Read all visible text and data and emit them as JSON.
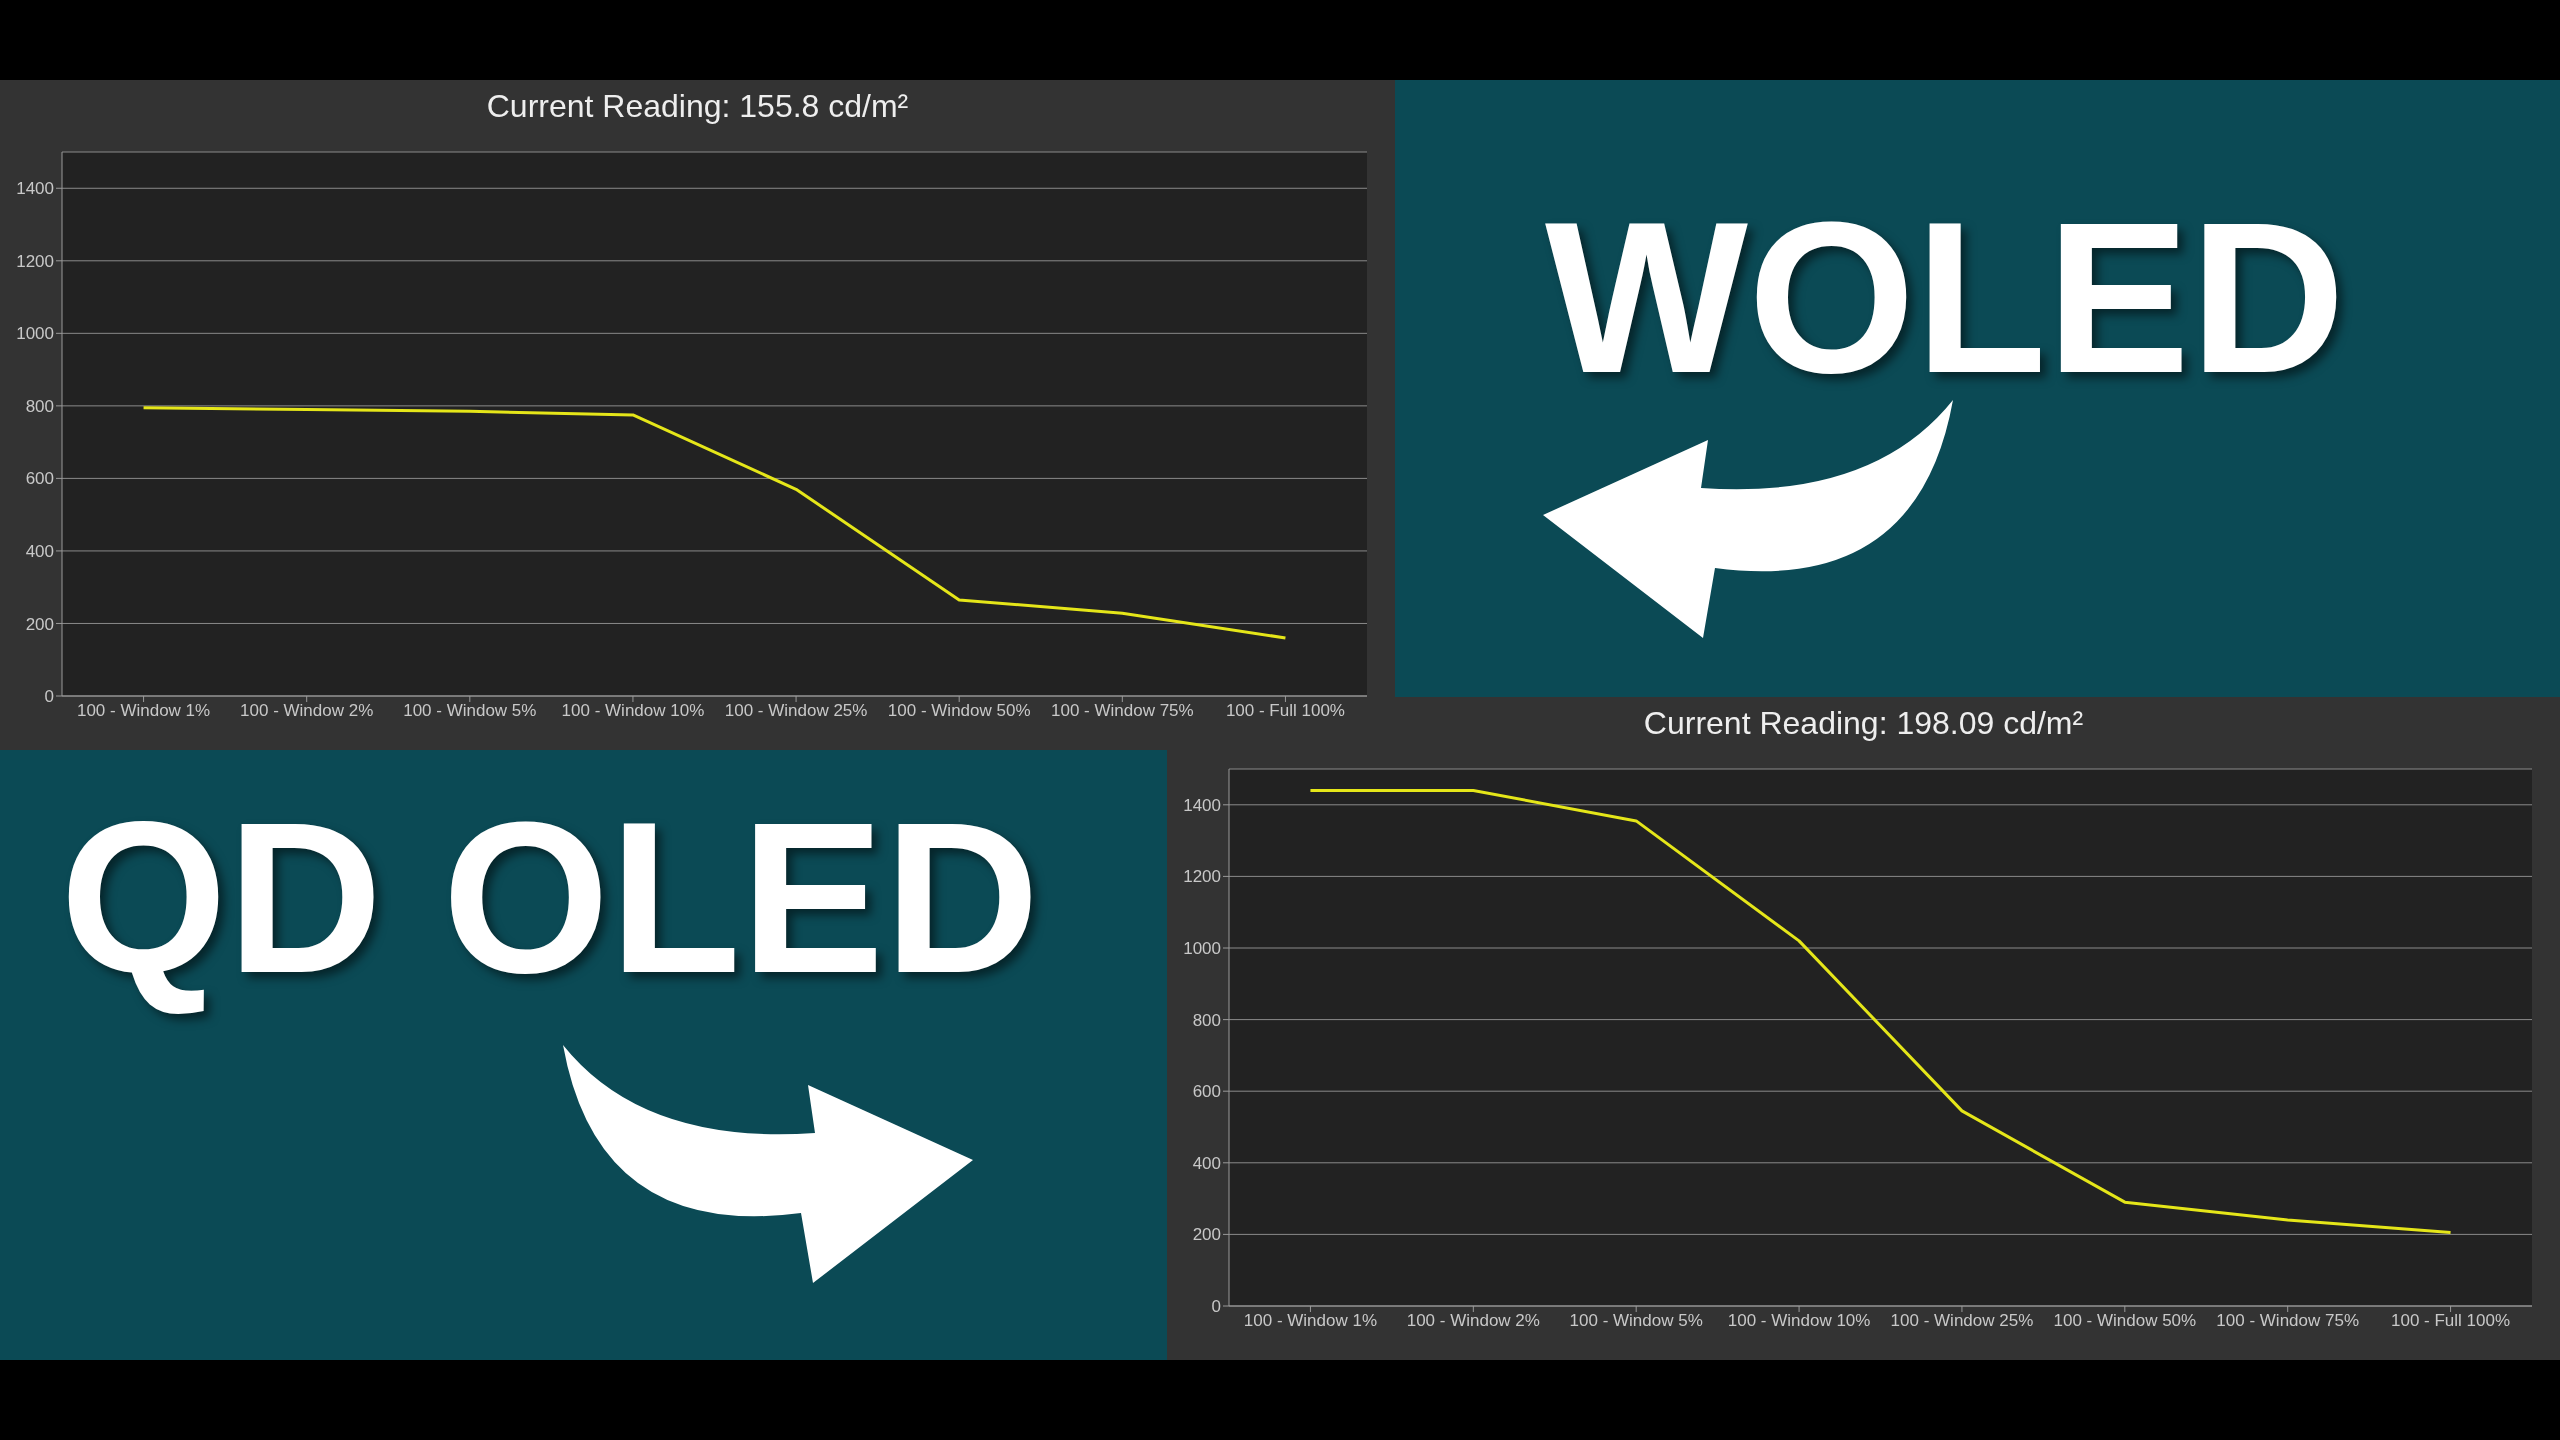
{
  "chart_data": [
    {
      "type": "line",
      "title": "Current Reading: 155.8 cd/m²",
      "annotations": [
        "WOLED"
      ],
      "categories": [
        "100 - Window 1%",
        "100 - Window 2%",
        "100 - Window 5%",
        "100 - Window 10%",
        "100 - Window 25%",
        "100 - Window 50%",
        "100 - Window 75%",
        "100 - Full 100%"
      ],
      "series": [
        {
          "color": "#e5e619",
          "values": [
            795,
            790,
            785,
            775,
            570,
            265,
            228,
            160
          ]
        }
      ],
      "ylim": [
        0,
        1500
      ],
      "yticks": [
        0,
        200,
        400,
        600,
        800,
        1000,
        1200,
        1400
      ],
      "grid": "y",
      "marker": "none",
      "line_style": "solid"
    },
    {
      "type": "line",
      "title": "Current Reading: 198.09 cd/m²",
      "annotations": [
        "QD OLED"
      ],
      "categories": [
        "100 - Window 1%",
        "100 - Window 2%",
        "100 - Window 5%",
        "100 - Window 10%",
        "100 - Window 25%",
        "100 - Window 50%",
        "100 - Window 75%",
        "100 - Full 100%"
      ],
      "series": [
        {
          "color": "#e5e619",
          "values": [
            1440,
            1440,
            1355,
            1020,
            545,
            290,
            240,
            205
          ]
        }
      ],
      "ylim": [
        0,
        1500
      ],
      "yticks": [
        0,
        200,
        400,
        600,
        800,
        1000,
        1200,
        1400
      ],
      "grid": "y",
      "marker": "none",
      "line_style": "solid"
    }
  ]
}
